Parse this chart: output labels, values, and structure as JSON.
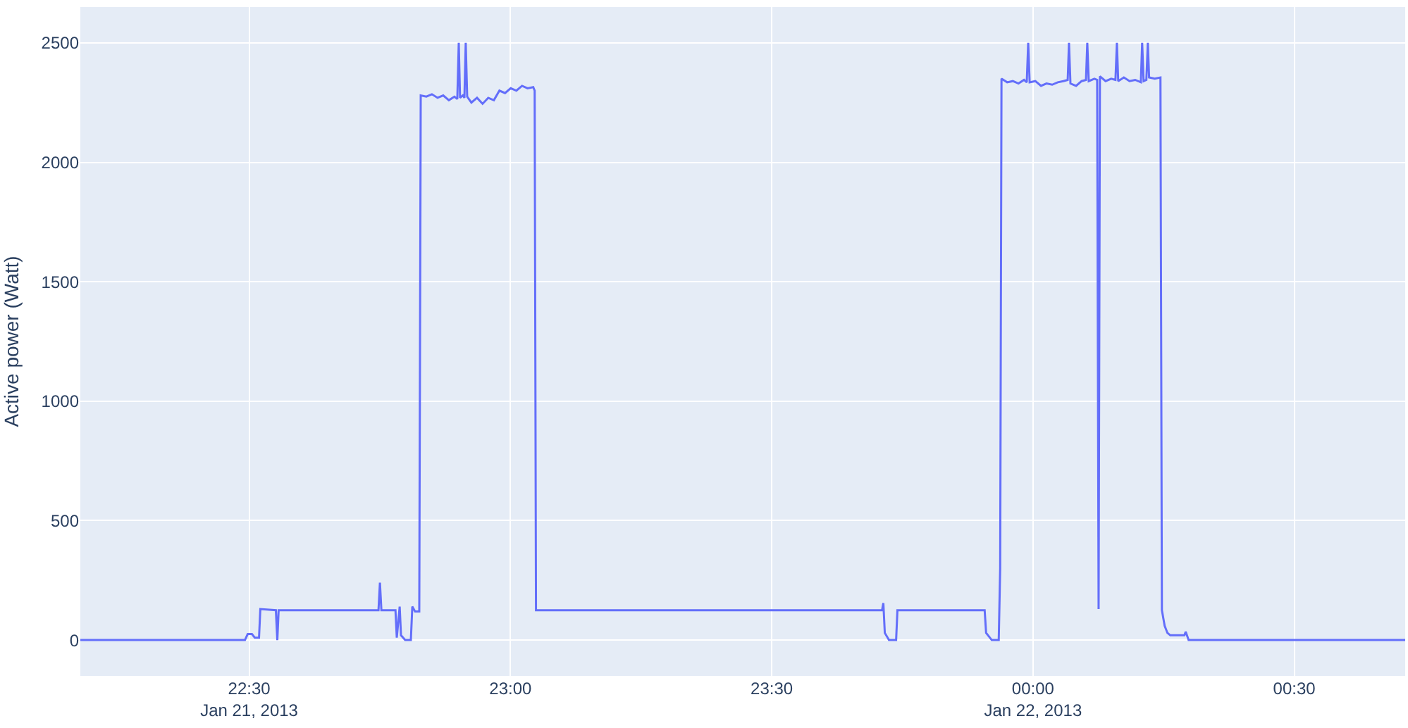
{
  "chart_data": {
    "type": "line",
    "ylabel": "Active power (Watt)",
    "xlim": [
      "2013-01-21T22:10:37",
      "2013-01-22T00:42:44"
    ],
    "xticks": [
      {
        "value": "2013-01-21T22:30",
        "label": "22:30\nJan 21, 2013"
      },
      {
        "value": "2013-01-21T23:00",
        "label": "23:00"
      },
      {
        "value": "2013-01-21T23:30",
        "label": "23:30"
      },
      {
        "value": "2013-01-22T00:00",
        "label": "00:00\nJan 22, 2013"
      },
      {
        "value": "2013-01-22T00:30",
        "label": "00:30"
      }
    ],
    "ylim": [
      -150,
      2650
    ],
    "yticks": [
      0,
      500,
      1000,
      1500,
      2000,
      2500
    ],
    "grid": true,
    "marker": "none",
    "line_style": "solid",
    "x": [
      "2013-01-21T22:10:37",
      "2013-01-21T22:29:31",
      "2013-01-21T22:29:50",
      "2013-01-21T22:30:19",
      "2013-01-21T22:30:39",
      "2013-01-21T22:31:08",
      "2013-01-21T22:31:17",
      "2013-01-21T22:33:04",
      "2013-01-21T22:33:14",
      "2013-01-21T22:33:23",
      "2013-01-21T22:44:51",
      "2013-01-21T22:45:01",
      "2013-01-21T22:45:11",
      "2013-01-21T22:46:48",
      "2013-01-21T22:46:57",
      "2013-01-21T22:47:17",
      "2013-01-21T22:47:26",
      "2013-01-21T22:47:55",
      "2013-01-21T22:48:34",
      "2013-01-21T22:48:44",
      "2013-01-21T22:49:03",
      "2013-01-21T22:49:32",
      "2013-01-21T22:49:42",
      "2013-01-21T22:50:21",
      "2013-01-21T22:50:59",
      "2013-01-21T22:51:38",
      "2013-01-21T22:52:17",
      "2013-01-21T22:52:56",
      "2013-01-21T22:53:34",
      "2013-01-21T22:53:54",
      "2013-01-21T22:54:04",
      "2013-01-21T22:54:13",
      "2013-01-21T22:54:32",
      "2013-01-21T22:54:43",
      "2013-01-21T22:54:52",
      "2013-01-21T22:55:02",
      "2013-01-21T22:55:31",
      "2013-01-21T22:56:10",
      "2013-01-21T22:56:48",
      "2013-01-21T22:57:27",
      "2013-01-21T22:58:06",
      "2013-01-21T22:58:44",
      "2013-01-21T22:59:23",
      "2013-01-21T23:00:02",
      "2013-01-21T23:00:41",
      "2013-01-21T23:01:20",
      "2013-01-21T23:01:58",
      "2013-01-21T23:02:37",
      "2013-01-21T23:02:47",
      "2013-01-21T23:02:56",
      "2013-01-21T23:42:40",
      "2013-01-21T23:42:49",
      "2013-01-21T23:42:59",
      "2013-01-21T23:43:28",
      "2013-01-21T23:44:17",
      "2013-01-21T23:44:26",
      "2013-01-21T23:54:27",
      "2013-01-21T23:54:37",
      "2013-01-21T23:55:16",
      "2013-01-21T23:56:04",
      "2013-01-21T23:56:14",
      "2013-01-21T23:56:23",
      "2013-01-21T23:57:02",
      "2013-01-21T23:57:41",
      "2013-01-21T23:58:20",
      "2013-01-21T23:58:58",
      "2013-01-21T23:59:17",
      "2013-01-21T23:59:27",
      "2013-01-21T23:59:37",
      "2013-01-22T00:00:16",
      "2013-01-22T00:00:55",
      "2013-01-22T00:01:33",
      "2013-01-22T00:02:12",
      "2013-01-22T00:02:51",
      "2013-01-22T00:03:29",
      "2013-01-22T00:03:59",
      "2013-01-22T00:04:08",
      "2013-01-22T00:04:18",
      "2013-01-22T00:04:57",
      "2013-01-22T00:05:35",
      "2013-01-22T00:06:05",
      "2013-01-22T00:06:14",
      "2013-01-22T00:06:24",
      "2013-01-22T00:07:03",
      "2013-01-22T00:07:22",
      "2013-01-22T00:07:32",
      "2013-01-22T00:07:41",
      "2013-01-22T00:08:20",
      "2013-01-22T00:08:59",
      "2013-01-22T00:09:28",
      "2013-01-22T00:09:38",
      "2013-01-22T00:09:47",
      "2013-01-22T00:10:26",
      "2013-01-22T00:11:05",
      "2013-01-22T00:11:44",
      "2013-01-22T00:12:23",
      "2013-01-22T00:12:32",
      "2013-01-22T00:12:42",
      "2013-01-22T00:13:01",
      "2013-01-22T00:13:11",
      "2013-01-22T00:13:20",
      "2013-01-22T00:13:59",
      "2013-01-22T00:14:38",
      "2013-01-22T00:14:48",
      "2013-01-22T00:15:07",
      "2013-01-22T00:15:26",
      "2013-01-22T00:15:46",
      "2013-01-22T00:17:23",
      "2013-01-22T00:17:32",
      "2013-01-22T00:17:52",
      "2013-01-22T00:42:44"
    ],
    "series": [
      {
        "color": "#636efa",
        "values": [
          0,
          0,
          25,
          25,
          10,
          10,
          130,
          125,
          0,
          125,
          125,
          240,
          125,
          125,
          10,
          140,
          20,
          0,
          0,
          140,
          120,
          120,
          2280,
          2275,
          2285,
          2270,
          2280,
          2260,
          2275,
          2265,
          2500,
          2270,
          2280,
          2270,
          2500,
          2275,
          2250,
          2270,
          2245,
          2270,
          2260,
          2300,
          2290,
          2310,
          2300,
          2320,
          2310,
          2315,
          2300,
          125,
          125,
          155,
          30,
          0,
          0,
          125,
          125,
          30,
          0,
          0,
          300,
          2350,
          2335,
          2340,
          2330,
          2345,
          2335,
          2500,
          2335,
          2340,
          2320,
          2330,
          2325,
          2335,
          2340,
          2345,
          2500,
          2330,
          2320,
          2340,
          2345,
          2500,
          2340,
          2350,
          2345,
          130,
          2360,
          2340,
          2350,
          2345,
          2500,
          2340,
          2355,
          2340,
          2345,
          2335,
          2500,
          2340,
          2345,
          2500,
          2355,
          2350,
          2355,
          125,
          60,
          30,
          20,
          20,
          35,
          0,
          0
        ]
      }
    ]
  }
}
